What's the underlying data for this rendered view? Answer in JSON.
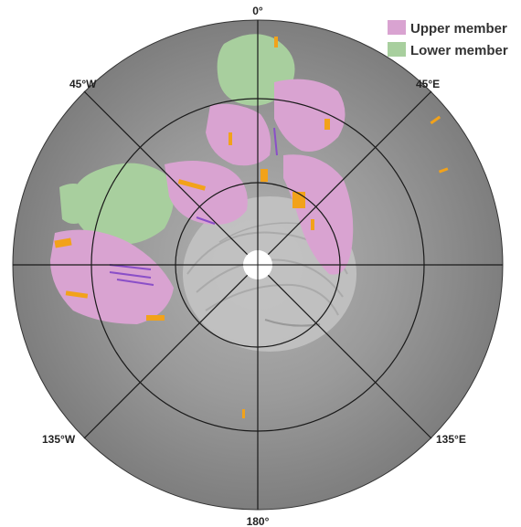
{
  "map": {
    "labels": {
      "north": "0°",
      "south": "180°",
      "nw": "45°W",
      "ne": "45°E",
      "sw": "135°W",
      "se": "135°E"
    },
    "legend": [
      {
        "label": "Upper member",
        "color": "#d9a3d1"
      },
      {
        "label": "Lower member",
        "color": "#a8cf9e"
      }
    ],
    "colors": {
      "terrain": "#8a8a8a",
      "upper_member": "#d9a3d1",
      "lower_member": "#a8cf9e",
      "orange_feature": "#f2a21a",
      "purple_feature": "#8a4fc8",
      "graticule": "#1a1a1a",
      "pole": "#ffffff"
    }
  }
}
